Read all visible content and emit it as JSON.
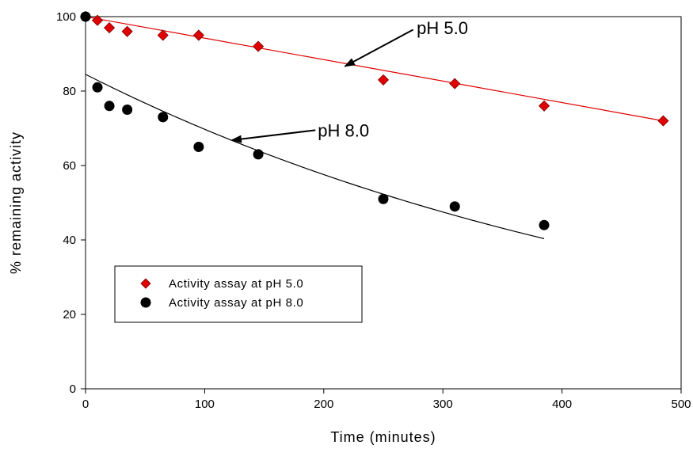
{
  "chart_data": {
    "type": "scatter",
    "xlabel": "Time (minutes)",
    "ylabel": "% remaining activity",
    "xlim": [
      0,
      500
    ],
    "ylim": [
      0,
      100
    ],
    "xticks": [
      0,
      100,
      200,
      300,
      400,
      500
    ],
    "yticks": [
      0,
      20,
      40,
      60,
      80,
      100
    ],
    "grid": false,
    "legend_position": "lower-left",
    "series": [
      {
        "name": "Activity assay at pH 5.0",
        "marker": "diamond",
        "color": "#e00000",
        "x": [
          0,
          10,
          20,
          35,
          65,
          95,
          145,
          250,
          310,
          385,
          485
        ],
        "y": [
          100,
          99,
          97,
          96,
          95,
          95,
          92,
          83,
          82,
          76,
          72
        ],
        "fit": {
          "type": "linear",
          "color": "#e00000",
          "x_range": [
            0,
            485
          ],
          "y_start": 100,
          "y_end": 72
        }
      },
      {
        "name": "Activity assay at pH 8.0",
        "marker": "circle",
        "color": "#000000",
        "x": [
          0,
          10,
          20,
          35,
          65,
          95,
          145,
          250,
          310,
          385
        ],
        "y": [
          100,
          81,
          76,
          75,
          73,
          65,
          63,
          51,
          49,
          44
        ],
        "fit": {
          "type": "exponential",
          "color": "#000000",
          "x_range": [
            0,
            385
          ],
          "a": 84.5,
          "k": 0.00192
        }
      }
    ],
    "annotations": [
      {
        "text": "pH 5.0",
        "text_at": [
          278,
          97
        ],
        "arrow_from": [
          275,
          96.5
        ],
        "arrow_to": [
          218,
          86.7
        ]
      },
      {
        "text": "pH 8.0",
        "text_at": [
          195,
          69.5
        ],
        "arrow_from": [
          193,
          69.5
        ],
        "arrow_to": [
          123,
          66.8
        ]
      }
    ]
  }
}
